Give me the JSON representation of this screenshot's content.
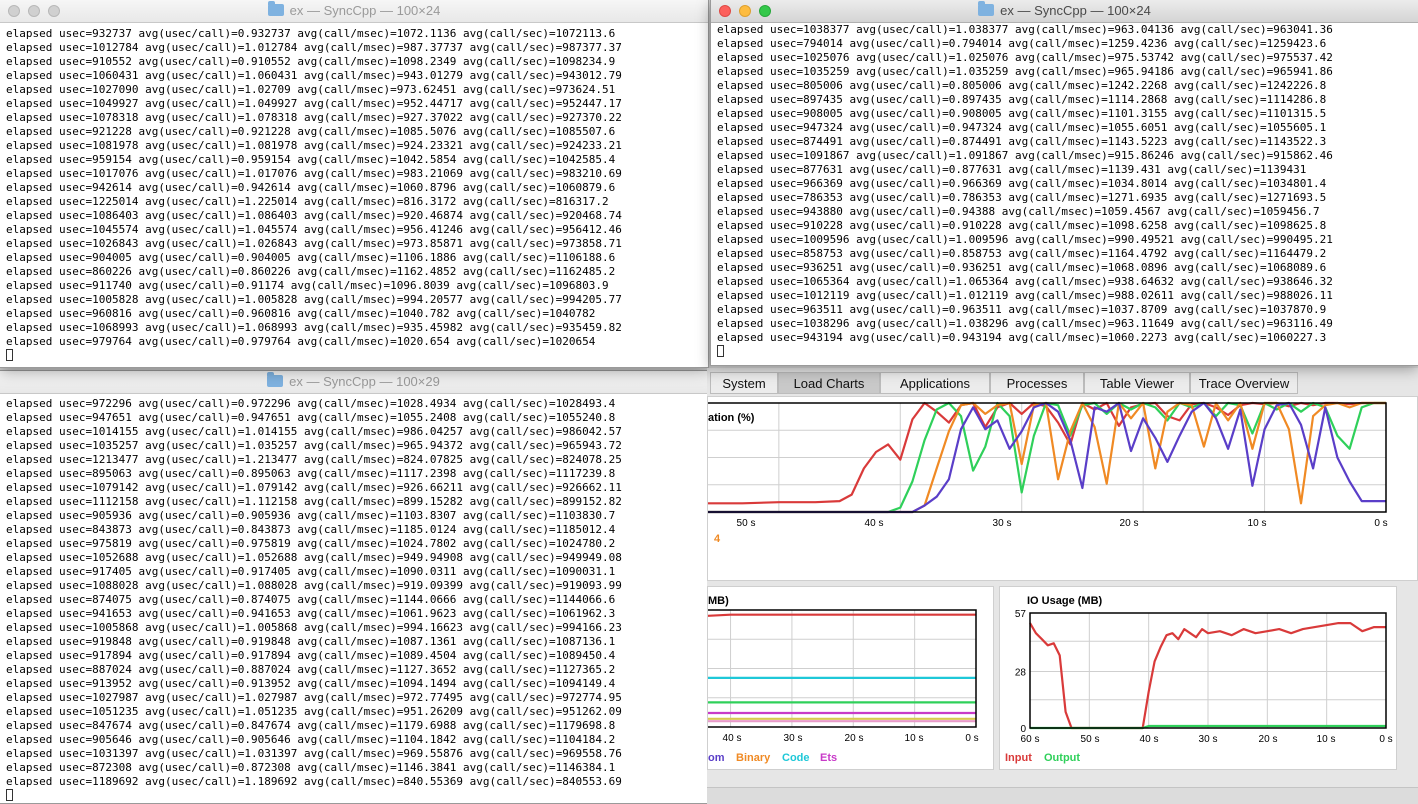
{
  "windows": {
    "top_left": {
      "title": "ex — SyncCpp — 100×24",
      "lines": [
        "elapsed usec=932737 avg(usec/call)=0.932737 avg(call/msec)=1072.1136 avg(call/sec)=1072113.6",
        "elapsed usec=1012784 avg(usec/call)=1.012784 avg(call/msec)=987.37737 avg(call/sec)=987377.37",
        "elapsed usec=910552 avg(usec/call)=0.910552 avg(call/msec)=1098.2349 avg(call/sec)=1098234.9",
        "elapsed usec=1060431 avg(usec/call)=1.060431 avg(call/msec)=943.01279 avg(call/sec)=943012.79",
        "elapsed usec=1027090 avg(usec/call)=1.02709 avg(call/msec)=973.62451 avg(call/sec)=973624.51",
        "elapsed usec=1049927 avg(usec/call)=1.049927 avg(call/msec)=952.44717 avg(call/sec)=952447.17",
        "elapsed usec=1078318 avg(usec/call)=1.078318 avg(call/msec)=927.37022 avg(call/sec)=927370.22",
        "elapsed usec=921228 avg(usec/call)=0.921228 avg(call/msec)=1085.5076 avg(call/sec)=1085507.6",
        "elapsed usec=1081978 avg(usec/call)=1.081978 avg(call/msec)=924.23321 avg(call/sec)=924233.21",
        "elapsed usec=959154 avg(usec/call)=0.959154 avg(call/msec)=1042.5854 avg(call/sec)=1042585.4",
        "elapsed usec=1017076 avg(usec/call)=1.017076 avg(call/msec)=983.21069 avg(call/sec)=983210.69",
        "elapsed usec=942614 avg(usec/call)=0.942614 avg(call/msec)=1060.8796 avg(call/sec)=1060879.6",
        "elapsed usec=1225014 avg(usec/call)=1.225014 avg(call/msec)=816.3172 avg(call/sec)=816317.2",
        "elapsed usec=1086403 avg(usec/call)=1.086403 avg(call/msec)=920.46874 avg(call/sec)=920468.74",
        "elapsed usec=1045574 avg(usec/call)=1.045574 avg(call/msec)=956.41246 avg(call/sec)=956412.46",
        "elapsed usec=1026843 avg(usec/call)=1.026843 avg(call/msec)=973.85871 avg(call/sec)=973858.71",
        "elapsed usec=904005 avg(usec/call)=0.904005 avg(call/msec)=1106.1886 avg(call/sec)=1106188.6",
        "elapsed usec=860226 avg(usec/call)=0.860226 avg(call/msec)=1162.4852 avg(call/sec)=1162485.2",
        "elapsed usec=911740 avg(usec/call)=0.91174 avg(call/msec)=1096.8039 avg(call/sec)=1096803.9",
        "elapsed usec=1005828 avg(usec/call)=1.005828 avg(call/msec)=994.20577 avg(call/sec)=994205.77",
        "elapsed usec=960816 avg(usec/call)=0.960816 avg(call/msec)=1040.782 avg(call/sec)=1040782",
        "elapsed usec=1068993 avg(usec/call)=1.068993 avg(call/msec)=935.45982 avg(call/sec)=935459.82",
        "elapsed usec=979764 avg(usec/call)=0.979764 avg(call/msec)=1020.654 avg(call/sec)=1020654"
      ]
    },
    "top_right": {
      "title": "ex — SyncCpp — 100×24",
      "lines": [
        "elapsed usec=1038377 avg(usec/call)=1.038377 avg(call/msec)=963.04136 avg(call/sec)=963041.36",
        "elapsed usec=794014 avg(usec/call)=0.794014 avg(call/msec)=1259.4236 avg(call/sec)=1259423.6",
        "elapsed usec=1025076 avg(usec/call)=1.025076 avg(call/msec)=975.53742 avg(call/sec)=975537.42",
        "elapsed usec=1035259 avg(usec/call)=1.035259 avg(call/msec)=965.94186 avg(call/sec)=965941.86",
        "elapsed usec=805006 avg(usec/call)=0.805006 avg(call/msec)=1242.2268 avg(call/sec)=1242226.8",
        "elapsed usec=897435 avg(usec/call)=0.897435 avg(call/msec)=1114.2868 avg(call/sec)=1114286.8",
        "elapsed usec=908005 avg(usec/call)=0.908005 avg(call/msec)=1101.3155 avg(call/sec)=1101315.5",
        "elapsed usec=947324 avg(usec/call)=0.947324 avg(call/msec)=1055.6051 avg(call/sec)=1055605.1",
        "elapsed usec=874491 avg(usec/call)=0.874491 avg(call/msec)=1143.5223 avg(call/sec)=1143522.3",
        "elapsed usec=1091867 avg(usec/call)=1.091867 avg(call/msec)=915.86246 avg(call/sec)=915862.46",
        "elapsed usec=877631 avg(usec/call)=0.877631 avg(call/msec)=1139.431 avg(call/sec)=1139431",
        "elapsed usec=966369 avg(usec/call)=0.966369 avg(call/msec)=1034.8014 avg(call/sec)=1034801.4",
        "elapsed usec=786353 avg(usec/call)=0.786353 avg(call/msec)=1271.6935 avg(call/sec)=1271693.5",
        "elapsed usec=943880 avg(usec/call)=0.94388 avg(call/msec)=1059.4567 avg(call/sec)=1059456.7",
        "elapsed usec=910228 avg(usec/call)=0.910228 avg(call/msec)=1098.6258 avg(call/sec)=1098625.8",
        "elapsed usec=1009596 avg(usec/call)=1.009596 avg(call/msec)=990.49521 avg(call/sec)=990495.21",
        "elapsed usec=858753 avg(usec/call)=0.858753 avg(call/msec)=1164.4792 avg(call/sec)=1164479.2",
        "elapsed usec=936251 avg(usec/call)=0.936251 avg(call/msec)=1068.0896 avg(call/sec)=1068089.6",
        "elapsed usec=1065364 avg(usec/call)=1.065364 avg(call/msec)=938.64632 avg(call/sec)=938646.32",
        "elapsed usec=1012119 avg(usec/call)=1.012119 avg(call/msec)=988.02611 avg(call/sec)=988026.11",
        "elapsed usec=963511 avg(usec/call)=0.963511 avg(call/msec)=1037.8709 avg(call/sec)=1037870.9",
        "elapsed usec=1038296 avg(usec/call)=1.038296 avg(call/msec)=963.11649 avg(call/sec)=963116.49",
        "elapsed usec=943194 avg(usec/call)=0.943194 avg(call/msec)=1060.2273 avg(call/sec)=1060227.3"
      ]
    },
    "bottom_left": {
      "title": "ex — SyncCpp — 100×29",
      "lines": [
        "elapsed usec=972296 avg(usec/call)=0.972296 avg(call/msec)=1028.4934 avg(call/sec)=1028493.4",
        "elapsed usec=947651 avg(usec/call)=0.947651 avg(call/msec)=1055.2408 avg(call/sec)=1055240.8",
        "elapsed usec=1014155 avg(usec/call)=1.014155 avg(call/msec)=986.04257 avg(call/sec)=986042.57",
        "elapsed usec=1035257 avg(usec/call)=1.035257 avg(call/msec)=965.94372 avg(call/sec)=965943.72",
        "elapsed usec=1213477 avg(usec/call)=1.213477 avg(call/msec)=824.07825 avg(call/sec)=824078.25",
        "elapsed usec=895063 avg(usec/call)=0.895063 avg(call/msec)=1117.2398 avg(call/sec)=1117239.8",
        "elapsed usec=1079142 avg(usec/call)=1.079142 avg(call/msec)=926.66211 avg(call/sec)=926662.11",
        "elapsed usec=1112158 avg(usec/call)=1.112158 avg(call/msec)=899.15282 avg(call/sec)=899152.82",
        "elapsed usec=905936 avg(usec/call)=0.905936 avg(call/msec)=1103.8307 avg(call/sec)=1103830.7",
        "elapsed usec=843873 avg(usec/call)=0.843873 avg(call/msec)=1185.0124 avg(call/sec)=1185012.4",
        "elapsed usec=975819 avg(usec/call)=0.975819 avg(call/msec)=1024.7802 avg(call/sec)=1024780.2",
        "elapsed usec=1052688 avg(usec/call)=1.052688 avg(call/msec)=949.94908 avg(call/sec)=949949.08",
        "elapsed usec=917405 avg(usec/call)=0.917405 avg(call/msec)=1090.0311 avg(call/sec)=1090031.1",
        "elapsed usec=1088028 avg(usec/call)=1.088028 avg(call/msec)=919.09399 avg(call/sec)=919093.99",
        "elapsed usec=874075 avg(usec/call)=0.874075 avg(call/msec)=1144.0666 avg(call/sec)=1144066.6",
        "elapsed usec=941653 avg(usec/call)=0.941653 avg(call/msec)=1061.9623 avg(call/sec)=1061962.3",
        "elapsed usec=1005868 avg(usec/call)=1.005868 avg(call/msec)=994.16623 avg(call/sec)=994166.23",
        "elapsed usec=919848 avg(usec/call)=0.919848 avg(call/msec)=1087.1361 avg(call/sec)=1087136.1",
        "elapsed usec=917894 avg(usec/call)=0.917894 avg(call/msec)=1089.4504 avg(call/sec)=1089450.4",
        "elapsed usec=887024 avg(usec/call)=0.887024 avg(call/msec)=1127.3652 avg(call/sec)=1127365.2",
        "elapsed usec=913952 avg(usec/call)=0.913952 avg(call/msec)=1094.1494 avg(call/sec)=1094149.4",
        "elapsed usec=1027987 avg(usec/call)=1.027987 avg(call/msec)=972.77495 avg(call/sec)=972774.95",
        "elapsed usec=1051235 avg(usec/call)=1.051235 avg(call/msec)=951.26209 avg(call/sec)=951262.09",
        "elapsed usec=847674 avg(usec/call)=0.847674 avg(call/msec)=1179.6988 avg(call/sec)=1179698.8",
        "elapsed usec=905646 avg(usec/call)=0.905646 avg(call/msec)=1104.1842 avg(call/sec)=1104184.2",
        "elapsed usec=1031397 avg(usec/call)=1.031397 avg(call/msec)=969.55876 avg(call/sec)=969558.76",
        "elapsed usec=872308 avg(usec/call)=0.872308 avg(call/msec)=1146.3841 avg(call/sec)=1146384.1",
        "elapsed usec=1189692 avg(usec/call)=1.189692 avg(call/msec)=840.55369 avg(call/sec)=840553.69"
      ]
    }
  },
  "observer": {
    "tabs": [
      "System",
      "Load Charts",
      "Applications",
      "Processes",
      "Table Viewer",
      "Trace Overview"
    ],
    "active_tab": "Load Charts"
  },
  "colors": {
    "red": "#d93a3a",
    "green": "#2fd05a",
    "orange": "#f08a24",
    "purple": "#5a3ec8",
    "cyan": "#1ec8d8",
    "magenta": "#c83ac8",
    "pink": "#e89ac8",
    "yellow": "#d8c850"
  },
  "chart_data": [
    {
      "type": "line",
      "title": "ation (%)",
      "x_ticks": [
        "50 s",
        "40 s",
        "30 s",
        "20 s",
        "10 s",
        "0 s"
      ],
      "legend": [
        "4"
      ],
      "x": [
        56,
        53,
        50,
        47,
        45,
        44,
        43,
        42,
        41,
        40,
        39,
        38,
        37,
        36,
        35,
        34,
        33,
        32,
        31,
        30,
        29,
        28,
        27,
        26,
        25,
        24,
        23,
        22,
        21,
        20,
        19,
        18,
        17,
        16,
        15,
        14,
        13,
        12,
        11,
        10,
        9,
        8,
        7,
        6,
        5,
        4,
        3,
        2,
        1,
        0
      ],
      "series": [
        {
          "color": "#d93a3a",
          "values": [
            8,
            8,
            9,
            9,
            10,
            16,
            40,
            55,
            62,
            48,
            85,
            100,
            92,
            82,
            98,
            100,
            78,
            96,
            100,
            90,
            100,
            97,
            82,
            62,
            100,
            94,
            100,
            79,
            96,
            99,
            100,
            88,
            84,
            99,
            100,
            96,
            89,
            98,
            100,
            99,
            100,
            97,
            100,
            98,
            100,
            100,
            99,
            100,
            100,
            100
          ]
        },
        {
          "color": "#2fd05a",
          "values": [
            0,
            0,
            0,
            0,
            0,
            0,
            0,
            0,
            0,
            4,
            28,
            66,
            94,
            100,
            88,
            38,
            60,
            100,
            88,
            18,
            70,
            100,
            98,
            70,
            98,
            100,
            90,
            100,
            94,
            100,
            96,
            84,
            100,
            96,
            100,
            88,
            100,
            98,
            72,
            100,
            94,
            100,
            92,
            100,
            96,
            70,
            58,
            96,
            100,
            100
          ]
        },
        {
          "color": "#f08a24",
          "values": [
            0,
            0,
            0,
            0,
            0,
            0,
            0,
            0,
            0,
            0,
            0,
            6,
            40,
            74,
            98,
            100,
            90,
            98,
            100,
            44,
            98,
            100,
            30,
            74,
            100,
            78,
            26,
            100,
            86,
            100,
            40,
            92,
            100,
            98,
            60,
            100,
            84,
            100,
            58,
            100,
            100,
            76,
            8,
            88,
            98,
            100,
            96,
            100,
            100,
            100
          ]
        },
        {
          "color": "#5a3ec8",
          "values": [
            0,
            0,
            0,
            0,
            0,
            0,
            0,
            0,
            0,
            0,
            0,
            6,
            14,
            30,
            76,
            96,
            76,
            84,
            58,
            74,
            96,
            100,
            92,
            66,
            22,
            96,
            92,
            100,
            56,
            86,
            68,
            46,
            70,
            92,
            100,
            86,
            58,
            94,
            24,
            76,
            98,
            100,
            80,
            40,
            96,
            50,
            28,
            10,
            10,
            10
          ]
        }
      ]
    },
    {
      "type": "line",
      "title": "MB)",
      "x_ticks": [
        "40 s",
        "30 s",
        "20 s",
        "10 s",
        "0 s"
      ],
      "legend": [
        "om",
        "Binary",
        "Code",
        "Ets"
      ],
      "x": [
        44,
        40,
        35,
        30,
        25,
        20,
        15,
        10,
        5,
        0
      ],
      "series": [
        {
          "color": "#d93a3a",
          "values": [
            95,
            96,
            96,
            96,
            96,
            96,
            96,
            96,
            96,
            96
          ]
        },
        {
          "color": "#1ec8d8",
          "values": [
            42,
            42,
            42,
            42,
            42,
            42,
            42,
            42,
            42,
            42
          ]
        },
        {
          "color": "#2fd05a",
          "values": [
            21,
            21,
            21,
            21,
            21,
            21,
            21,
            21,
            21,
            21
          ]
        },
        {
          "color": "#c83ac8",
          "values": [
            12,
            12,
            12,
            12,
            12,
            12,
            12,
            12,
            12,
            12
          ]
        },
        {
          "color": "#d8c850",
          "values": [
            7,
            7,
            7,
            7,
            7,
            7,
            7,
            7,
            7,
            7
          ]
        },
        {
          "color": "#e89ac8",
          "values": [
            5,
            5,
            5,
            5,
            5,
            5,
            5,
            5,
            5,
            5
          ]
        }
      ]
    },
    {
      "type": "line",
      "title": "IO Usage (MB)",
      "y_ticks": [
        "57",
        "28",
        "0"
      ],
      "ylim": [
        0,
        57
      ],
      "x_ticks": [
        "60 s",
        "50 s",
        "40 s",
        "30 s",
        "20 s",
        "10 s",
        "0 s"
      ],
      "legend": [
        "Input",
        "Output"
      ],
      "x": [
        60,
        59,
        58,
        57,
        56,
        55,
        54,
        53,
        50,
        45,
        41,
        40,
        39,
        38,
        37,
        36,
        35,
        34,
        33,
        32,
        31,
        30,
        28,
        26,
        24,
        22,
        20,
        18,
        16,
        14,
        12,
        10,
        8,
        6,
        4,
        2,
        0
      ],
      "series": [
        {
          "name": "Input",
          "color": "#d93a3a",
          "values": [
            52,
            47,
            44,
            41,
            42,
            36,
            8,
            0,
            0,
            0,
            0,
            18,
            33,
            40,
            46,
            47,
            44,
            49,
            47,
            45,
            49,
            47,
            48,
            46,
            49,
            47,
            48,
            49,
            47,
            49,
            50,
            51,
            52,
            52,
            48,
            50,
            50
          ]
        },
        {
          "name": "Output",
          "color": "#2fd05a",
          "values": [
            0,
            0,
            0,
            0,
            0,
            0,
            0,
            0,
            0,
            0,
            0,
            1,
            1,
            1,
            1,
            1,
            1,
            1,
            1,
            1,
            1,
            1,
            1,
            1,
            1,
            1,
            1,
            1,
            1,
            1,
            1,
            1,
            1,
            1,
            1,
            1,
            1
          ]
        }
      ]
    }
  ]
}
